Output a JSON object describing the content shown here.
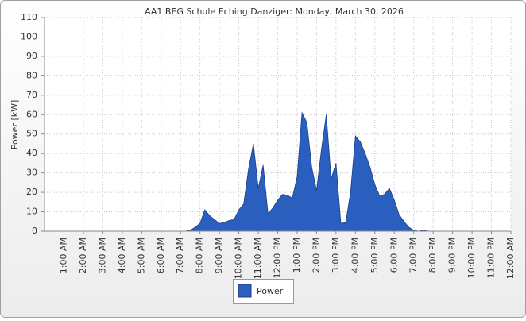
{
  "chart_data": {
    "type": "area",
    "title": "AA1 BEG Schule Eching Danziger: Monday, March 30, 2026",
    "y_label": "Power [kW]",
    "x": [
      7.0,
      7.25,
      7.5,
      7.75,
      8.0,
      8.25,
      8.5,
      8.75,
      9.0,
      9.25,
      9.5,
      9.75,
      10.0,
      10.25,
      10.5,
      10.75,
      11.0,
      11.25,
      11.5,
      11.75,
      12.0,
      12.25,
      12.5,
      12.75,
      13.0,
      13.25,
      13.5,
      13.75,
      14.0,
      14.25,
      14.5,
      14.75,
      15.0,
      15.25,
      15.5,
      15.75,
      16.0,
      16.25,
      16.5,
      16.75,
      17.0,
      17.25,
      17.5,
      17.75,
      18.0,
      18.25,
      18.5,
      18.75,
      19.0,
      19.25,
      19.5,
      19.75
    ],
    "series": [
      {
        "name": "Power",
        "color": "#2a5fbf",
        "values": [
          0,
          0,
          0.5,
          2,
          4,
          11,
          8,
          6,
          4,
          4.5,
          5.5,
          6,
          11,
          14,
          32,
          45,
          22,
          34,
          9,
          12,
          16,
          19,
          18.5,
          17,
          28,
          61,
          56,
          33,
          21,
          42,
          60,
          27,
          35,
          4,
          4.5,
          20,
          49,
          46,
          40,
          33,
          24,
          18,
          19,
          22,
          16,
          8.5,
          5,
          2,
          0.5,
          0,
          0.5,
          0
        ]
      }
    ],
    "xlim": [
      0,
      24
    ],
    "xticks": [
      {
        "value": 1,
        "label": "1:00 AM"
      },
      {
        "value": 2,
        "label": "2:00 AM"
      },
      {
        "value": 3,
        "label": "3:00 AM"
      },
      {
        "value": 4,
        "label": "4:00 AM"
      },
      {
        "value": 5,
        "label": "5:00 AM"
      },
      {
        "value": 6,
        "label": "6:00 AM"
      },
      {
        "value": 7,
        "label": "7:00 AM"
      },
      {
        "value": 8,
        "label": "8:00 AM"
      },
      {
        "value": 9,
        "label": "9:00 AM"
      },
      {
        "value": 10,
        "label": "10:00 AM"
      },
      {
        "value": 11,
        "label": "11:00 AM"
      },
      {
        "value": 12,
        "label": "12:00 PM"
      },
      {
        "value": 13,
        "label": "1:00 PM"
      },
      {
        "value": 14,
        "label": "2:00 PM"
      },
      {
        "value": 15,
        "label": "3:00 PM"
      },
      {
        "value": 16,
        "label": "4:00 PM"
      },
      {
        "value": 17,
        "label": "5:00 PM"
      },
      {
        "value": 18,
        "label": "6:00 PM"
      },
      {
        "value": 19,
        "label": "7:00 PM"
      },
      {
        "value": 20,
        "label": "8:00 PM"
      },
      {
        "value": 21,
        "label": "9:00 PM"
      },
      {
        "value": 22,
        "label": "10:00 PM"
      },
      {
        "value": 23,
        "label": "11:00 PM"
      },
      {
        "value": 24,
        "label": "12:00 AM"
      }
    ],
    "ylim": [
      0,
      110
    ],
    "yticks": [
      0,
      10,
      20,
      30,
      40,
      50,
      60,
      70,
      80,
      90,
      100,
      110
    ],
    "grid": true,
    "legend": "bottom"
  }
}
